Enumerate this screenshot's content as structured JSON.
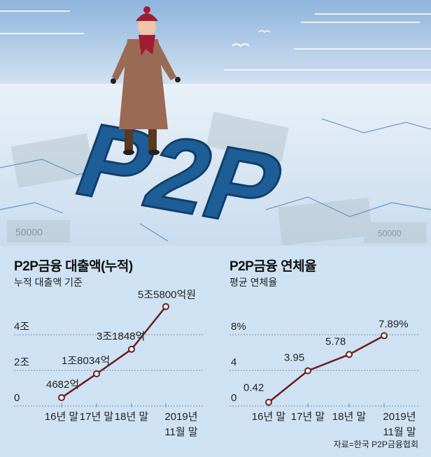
{
  "illustration": {
    "headline_letters": "P2P",
    "banknote_text": "50000",
    "colors": {
      "sky": "#a9c7e6",
      "ice": "#dfeaf4",
      "letters": "#1d5e96"
    }
  },
  "source": "자료=한국 P2P금융협회",
  "chart_data": [
    {
      "type": "line",
      "title": "P2P금융 대출액(누적)",
      "subtitle": "누적 대출액 기준",
      "categories": [
        "16년 말",
        "17년 말",
        "18년 말",
        "2019년\n11월 말"
      ],
      "values": [
        4682,
        18034,
        31848,
        55800
      ],
      "unit": "억원",
      "data_labels": [
        "4682억",
        "1조8034억",
        "3조1848억",
        "5조5800억원"
      ],
      "y_ticks": [
        {
          "value": 0,
          "label": "0"
        },
        {
          "value": 20000,
          "label": "2조"
        },
        {
          "value": 40000,
          "label": "4조"
        }
      ],
      "ylim": [
        0,
        55800
      ],
      "grid": true,
      "line_color": "#6b1f1f"
    },
    {
      "type": "line",
      "title": "P2P금융 연체율",
      "subtitle": "평균 연체율",
      "categories": [
        "16년 말",
        "17년 말",
        "18년 말",
        "2019년\n11월 말"
      ],
      "values": [
        0.42,
        3.95,
        5.78,
        7.89
      ],
      "unit": "%",
      "data_labels": [
        "0.42",
        "3.95",
        "5.78",
        "7.89%"
      ],
      "y_ticks": [
        {
          "value": 0,
          "label": "0"
        },
        {
          "value": 4,
          "label": "4"
        },
        {
          "value": 8,
          "label": "8%"
        }
      ],
      "ylim": [
        0,
        8
      ],
      "grid": true,
      "line_color": "#6b1f1f"
    }
  ]
}
